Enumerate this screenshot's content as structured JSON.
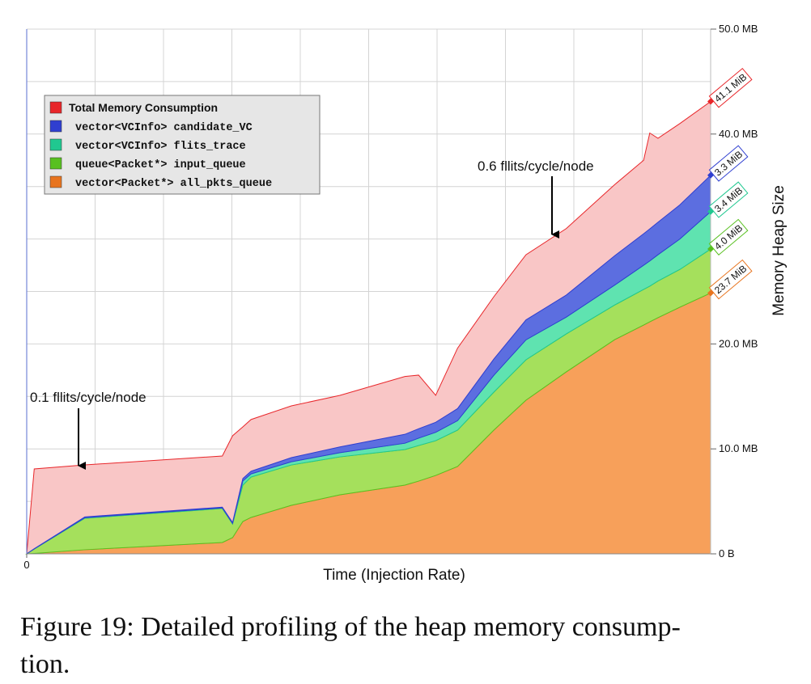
{
  "chart_data": {
    "type": "area",
    "xlabel": "Time (Injection Rate)",
    "ylabel": "Memory Heap Size",
    "x": [
      0,
      1.1,
      8.5,
      28.6,
      30.1,
      31.6,
      32.8,
      38.7,
      45.8,
      55.3,
      57.3,
      59.8,
      63.0,
      68.3,
      73.0,
      78.9,
      86.0,
      90.2,
      91.1,
      92.3,
      95.5,
      100
    ],
    "xlim": [
      0,
      100
    ],
    "xticks": [
      0
    ],
    "ylim": [
      0,
      50
    ],
    "yticks": [
      {
        "value": 0,
        "label": "0 B"
      },
      {
        "value": 10,
        "label": "10.0 MB"
      },
      {
        "value": 20,
        "label": "20.0 MB"
      },
      {
        "value": 40,
        "label": "40.0 MB"
      },
      {
        "value": 50,
        "label": "50.0 MB"
      }
    ],
    "yminor": [
      5,
      15,
      25,
      30,
      35,
      45
    ],
    "xgrid": [
      10,
      20,
      30,
      40,
      50,
      60,
      70,
      80,
      90
    ],
    "grid": true,
    "legend": "upper left",
    "series": [
      {
        "name": "Total Memory Consumption",
        "color": "#e8262a",
        "fill": "#f9c6c6",
        "stacked": false,
        "values": [
          0,
          8.09,
          8.47,
          9.32,
          11.25,
          12.1,
          12.8,
          14.1,
          15.1,
          16.9,
          17.03,
          15.1,
          19.6,
          24.5,
          28.5,
          31.0,
          35.2,
          37.5,
          40.1,
          39.6,
          41.0,
          43.1
        ],
        "value_labels": [
          null,
          null,
          null,
          null,
          null,
          null,
          null,
          null,
          null,
          null,
          null,
          null,
          null,
          null,
          null,
          null,
          null,
          null,
          null,
          null,
          null,
          "41.1 MiB"
        ]
      },
      {
        "name": "vector<VCInfo> candidate_VC",
        "color": "#2f3fd0",
        "fill": "#5c6ee0",
        "stacked": true,
        "values": [
          0,
          0.02,
          0.08,
          0.08,
          0.08,
          0.23,
          0.25,
          0.4,
          0.55,
          0.85,
          0.9,
          0.95,
          1.15,
          1.55,
          1.9,
          2.1,
          2.8,
          3.0,
          3.05,
          3.1,
          3.25,
          3.46
        ],
        "value_labels": [
          null,
          null,
          null,
          null,
          null,
          null,
          null,
          null,
          null,
          null,
          null,
          null,
          null,
          null,
          null,
          null,
          null,
          null,
          null,
          null,
          null,
          "3.3 MiB"
        ]
      },
      {
        "name": "vector<VCInfo> flits_trace",
        "color": "#20c890",
        "fill": "#5fe3b0",
        "stacked": true,
        "values": [
          0,
          0.01,
          0.05,
          0.05,
          0.05,
          0.39,
          0.3,
          0.3,
          0.4,
          0.6,
          0.7,
          0.8,
          0.9,
          1.6,
          1.9,
          1.6,
          1.9,
          2.3,
          2.4,
          2.5,
          2.9,
          3.57
        ],
        "value_labels": [
          null,
          null,
          null,
          null,
          null,
          null,
          null,
          null,
          null,
          null,
          null,
          null,
          null,
          null,
          null,
          null,
          null,
          null,
          null,
          null,
          null,
          "3.4 MiB"
        ]
      },
      {
        "name": "queue<Packet*> input_queue",
        "color": "#58c020",
        "fill": "#a5e05c",
        "stacked": true,
        "values": [
          0,
          0.42,
          3.0,
          3.24,
          1.31,
          3.47,
          3.85,
          3.85,
          3.62,
          3.39,
          3.39,
          3.31,
          3.47,
          3.62,
          3.85,
          3.62,
          3.3,
          3.4,
          3.4,
          3.5,
          3.6,
          4.19
        ],
        "value_labels": [
          null,
          null,
          null,
          null,
          null,
          null,
          null,
          null,
          null,
          null,
          null,
          null,
          null,
          null,
          null,
          null,
          null,
          null,
          null,
          null,
          null,
          "4.0 MiB"
        ]
      },
      {
        "name": "vector<Packet*> all_pkts_queue",
        "color": "#e8741e",
        "fill": "#f7a05a",
        "stacked": true,
        "values": [
          0,
          0.04,
          0.39,
          1.08,
          1.54,
          3.08,
          3.47,
          4.62,
          5.62,
          6.55,
          6.93,
          7.47,
          8.32,
          11.79,
          14.64,
          17.34,
          20.42,
          21.8,
          22.11,
          22.5,
          23.5,
          24.85
        ],
        "value_labels": [
          null,
          null,
          null,
          null,
          null,
          null,
          null,
          null,
          null,
          null,
          null,
          null,
          null,
          null,
          null,
          null,
          null,
          null,
          null,
          null,
          null,
          "23.7 MiB"
        ]
      }
    ],
    "annotations": [
      {
        "text": "0.1 fllits/cycle/node"
      },
      {
        "text": "0.6 fllits/cycle/node"
      }
    ]
  },
  "caption": [
    "Figure 19: Detailed profiling of the heap memory consump-",
    "tion."
  ]
}
